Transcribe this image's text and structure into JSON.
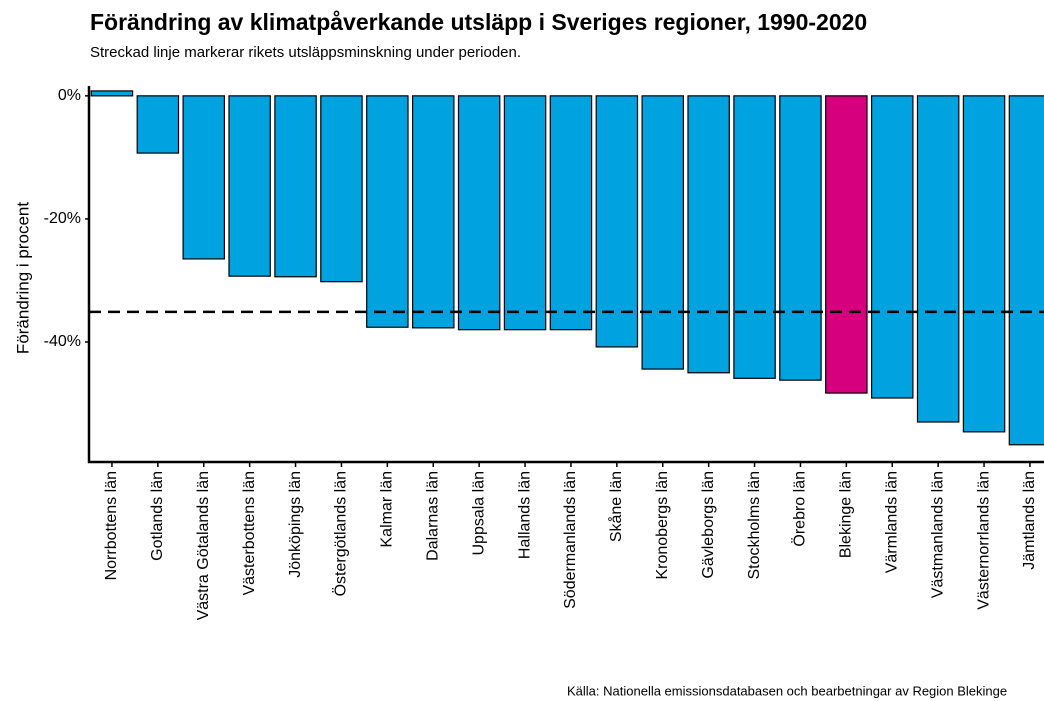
{
  "chart_data": {
    "type": "bar",
    "title": "Förändring av klimatpåverkande utsläpp i Sveriges regioner, 1990-2020",
    "subtitle": "Streckad linje markerar rikets utsläppsminskning under perioden.",
    "y_label": "Förändring i procent",
    "source": "Källa: Nationella emissionsdatabasen och bearbetningar av Region Blekinge",
    "categories": [
      "Norrbottens län",
      "Gotlands län",
      "Västra Götalands län",
      "Västerbottens län",
      "Jönköpings län",
      "Östergötlands län",
      "Kalmar län",
      "Dalarnas län",
      "Uppsala län",
      "Hallands län",
      "Södermanlands län",
      "Skåne län",
      "Kronobergs län",
      "Gävleborgs län",
      "Stockholms län",
      "Örebro län",
      "Blekinge län",
      "Värmlands län",
      "Västmanlands län",
      "Västernorrlands län",
      "Jämtlands län"
    ],
    "values": [
      0.8,
      -9.3,
      -26.5,
      -29.3,
      -29.4,
      -30.2,
      -37.6,
      -37.7,
      -38.0,
      -38.0,
      -38.0,
      -40.8,
      -44.4,
      -45.0,
      -45.9,
      -46.2,
      -48.3,
      -49.1,
      -53.0,
      -54.6,
      -56.7
    ],
    "colors": [
      "#00a3e0",
      "#00a3e0",
      "#00a3e0",
      "#00a3e0",
      "#00a3e0",
      "#00a3e0",
      "#00a3e0",
      "#00a3e0",
      "#00a3e0",
      "#00a3e0",
      "#00a3e0",
      "#00a3e0",
      "#00a3e0",
      "#00a3e0",
      "#00a3e0",
      "#00a3e0",
      "#d6007e",
      "#00a3e0",
      "#00a3e0",
      "#00a3e0",
      "#00a3e0"
    ],
    "reference_line": -35.1,
    "ylim": [
      -59.5,
      1.6
    ],
    "yticks": [
      {
        "value": 0,
        "label": "0%"
      },
      {
        "value": -20,
        "label": "-20%"
      },
      {
        "value": -40,
        "label": "-40%"
      }
    ],
    "grid": false
  }
}
